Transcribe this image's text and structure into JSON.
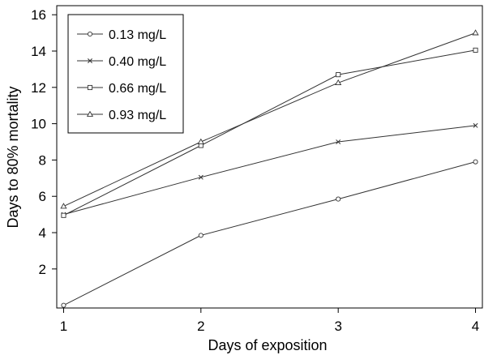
{
  "chart_data": {
    "type": "line",
    "title": "",
    "xlabel": "Days of exposition",
    "ylabel": "Days to 80% mortality",
    "x": [
      1,
      2,
      3,
      4
    ],
    "xlim": [
      0.95,
      4.05
    ],
    "ylim": [
      -0.15,
      16.5
    ],
    "xticks": [
      "1",
      "2",
      "3",
      "4"
    ],
    "yticks": [
      "2",
      "4",
      "6",
      "8",
      "10",
      "12",
      "14",
      "16"
    ],
    "grid": false,
    "legend_position": "top-left",
    "series": [
      {
        "name": "0.13 mg/L",
        "marker": "circle",
        "values": [
          0.0,
          3.85,
          5.85,
          7.9
        ]
      },
      {
        "name": "0.40 mg/L",
        "marker": "cross",
        "values": [
          5.0,
          7.05,
          9.0,
          9.9
        ]
      },
      {
        "name": "0.66 mg/L",
        "marker": "square",
        "values": [
          4.95,
          8.8,
          12.7,
          14.05
        ]
      },
      {
        "name": "0.93 mg/L",
        "marker": "triangle",
        "values": [
          5.45,
          9.0,
          12.25,
          15.0
        ]
      }
    ],
    "colors": {
      "line": "#333333",
      "marker": "#333333",
      "axis": "#000000"
    }
  }
}
